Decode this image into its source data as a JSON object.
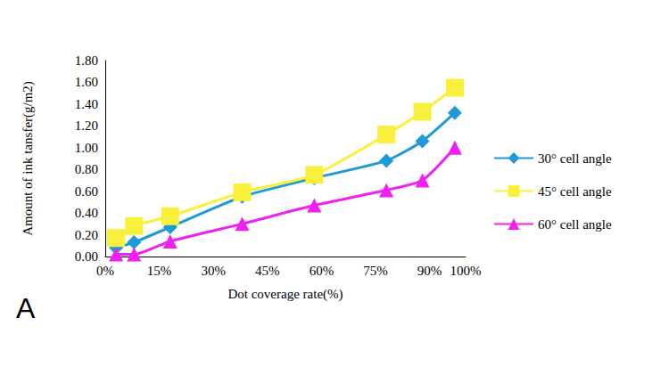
{
  "chart_data": {
    "type": "line",
    "x_label": "Dot coverage rate(%)",
    "y_label": "Amount of ink tansfer(g/m2)",
    "annotation": "A",
    "x": [
      3,
      8,
      18,
      38,
      58,
      78,
      88,
      97
    ],
    "series": [
      {
        "name": "30° cell angle",
        "color": "#1e9ad6",
        "marker": "diamond",
        "values": [
          0.08,
          0.13,
          0.27,
          0.55,
          0.72,
          0.88,
          1.06,
          1.32
        ]
      },
      {
        "name": "45° cell angle",
        "color": "#f8f03a",
        "marker": "square",
        "values": [
          0.17,
          0.28,
          0.37,
          0.59,
          0.75,
          1.12,
          1.33,
          1.55
        ]
      },
      {
        "name": "60° cell angle",
        "color": "#f020f0",
        "marker": "triangle",
        "values": [
          0.02,
          0.02,
          0.14,
          0.3,
          0.47,
          0.61,
          0.7,
          1.0
        ]
      }
    ],
    "xlim": [
      0,
      100
    ],
    "xticks": [
      {
        "value": 0,
        "label": "0%"
      },
      {
        "value": 15,
        "label": "15%"
      },
      {
        "value": 30,
        "label": "30%"
      },
      {
        "value": 45,
        "label": "45%"
      },
      {
        "value": 60,
        "label": "60%"
      },
      {
        "value": 75,
        "label": "75%"
      },
      {
        "value": 90,
        "label": "90%"
      },
      {
        "value": 100,
        "label": "100%"
      }
    ],
    "ylim": [
      0,
      1.8
    ],
    "yticks": [
      {
        "value": 0,
        "label": "0.00"
      },
      {
        "value": 0.2,
        "label": "0.20"
      },
      {
        "value": 0.4,
        "label": "0.40"
      },
      {
        "value": 0.6,
        "label": "0.60"
      },
      {
        "value": 0.8,
        "label": "0.80"
      },
      {
        "value": 1.0,
        "label": "1.00"
      },
      {
        "value": 1.2,
        "label": "1.20"
      },
      {
        "value": 1.4,
        "label": "1.40"
      },
      {
        "value": 1.6,
        "label": "1.60"
      },
      {
        "value": 1.8,
        "label": "1.80"
      }
    ],
    "grid": false,
    "legend": "right"
  }
}
